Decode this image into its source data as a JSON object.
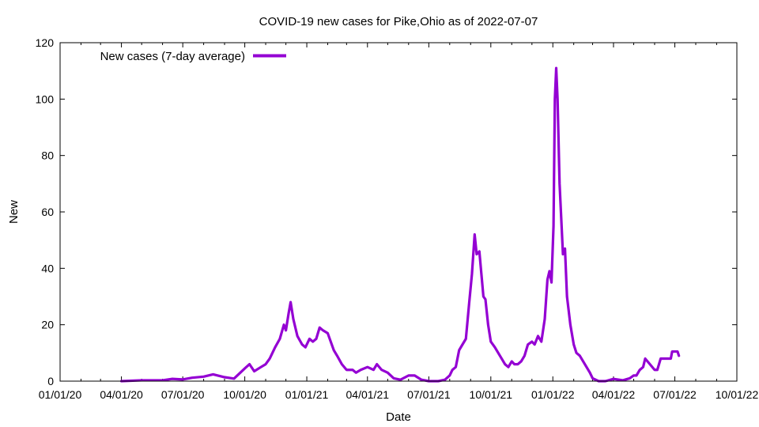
{
  "chart_data": {
    "type": "line",
    "title": "COVID-19 new cases for Pike,Ohio as of 2022-07-07",
    "xlabel": "Date",
    "ylabel": "New",
    "xlim": [
      "2020-01-01",
      "2022-10-01"
    ],
    "ylim": [
      0,
      120
    ],
    "x_ticks": [
      "01/01/20",
      "04/01/20",
      "07/01/20",
      "10/01/20",
      "01/01/21",
      "04/01/21",
      "07/01/21",
      "10/01/21",
      "01/01/22",
      "04/01/22",
      "07/01/22",
      "10/01/22"
    ],
    "y_ticks": [
      0,
      20,
      40,
      60,
      80,
      100,
      120
    ],
    "grid": false,
    "legend_position": "top-left",
    "series": [
      {
        "name": "New cases (7-day average)",
        "color": "#9400d3",
        "points": [
          [
            "2020-04-01",
            0
          ],
          [
            "2020-05-01",
            0.3
          ],
          [
            "2020-06-01",
            0.3
          ],
          [
            "2020-06-15",
            0.8
          ],
          [
            "2020-07-01",
            0.6
          ],
          [
            "2020-07-15",
            1.2
          ],
          [
            "2020-08-01",
            1.6
          ],
          [
            "2020-08-15",
            2.4
          ],
          [
            "2020-09-01",
            1.4
          ],
          [
            "2020-09-15",
            0.9
          ],
          [
            "2020-10-01",
            4.5
          ],
          [
            "2020-10-08",
            6
          ],
          [
            "2020-10-15",
            3.5
          ],
          [
            "2020-10-25",
            5
          ],
          [
            "2020-11-01",
            6
          ],
          [
            "2020-11-07",
            8
          ],
          [
            "2020-11-15",
            12
          ],
          [
            "2020-11-22",
            15
          ],
          [
            "2020-11-28",
            20
          ],
          [
            "2020-12-01",
            18
          ],
          [
            "2020-12-05",
            24
          ],
          [
            "2020-12-08",
            28
          ],
          [
            "2020-12-12",
            22
          ],
          [
            "2020-12-18",
            16
          ],
          [
            "2020-12-25",
            13
          ],
          [
            "2020-12-30",
            12
          ],
          [
            "2021-01-05",
            15
          ],
          [
            "2021-01-10",
            14
          ],
          [
            "2021-01-15",
            15
          ],
          [
            "2021-01-20",
            19
          ],
          [
            "2021-01-25",
            18
          ],
          [
            "2021-02-01",
            17
          ],
          [
            "2021-02-10",
            11
          ],
          [
            "2021-02-15",
            9
          ],
          [
            "2021-02-22",
            6
          ],
          [
            "2021-03-01",
            4
          ],
          [
            "2021-03-10",
            4
          ],
          [
            "2021-03-15",
            3
          ],
          [
            "2021-03-22",
            4
          ],
          [
            "2021-04-01",
            5
          ],
          [
            "2021-04-10",
            4
          ],
          [
            "2021-04-15",
            6
          ],
          [
            "2021-04-22",
            4
          ],
          [
            "2021-05-01",
            3
          ],
          [
            "2021-05-10",
            1
          ],
          [
            "2021-05-20",
            0.5
          ],
          [
            "2021-06-01",
            2
          ],
          [
            "2021-06-10",
            2
          ],
          [
            "2021-06-20",
            0.5
          ],
          [
            "2021-07-01",
            0
          ],
          [
            "2021-07-15",
            0
          ],
          [
            "2021-07-25",
            0.5
          ],
          [
            "2021-08-01",
            2
          ],
          [
            "2021-08-05",
            4
          ],
          [
            "2021-08-10",
            5
          ],
          [
            "2021-08-15",
            11
          ],
          [
            "2021-08-20",
            13
          ],
          [
            "2021-08-25",
            15
          ],
          [
            "2021-08-30",
            28
          ],
          [
            "2021-09-03",
            38
          ],
          [
            "2021-09-07",
            52
          ],
          [
            "2021-09-10",
            45
          ],
          [
            "2021-09-14",
            46
          ],
          [
            "2021-09-17",
            38
          ],
          [
            "2021-09-20",
            30
          ],
          [
            "2021-09-23",
            29
          ],
          [
            "2021-09-27",
            20
          ],
          [
            "2021-10-01",
            14
          ],
          [
            "2021-10-07",
            12
          ],
          [
            "2021-10-12",
            10
          ],
          [
            "2021-10-17",
            8
          ],
          [
            "2021-10-22",
            6
          ],
          [
            "2021-10-27",
            5
          ],
          [
            "2021-11-01",
            7
          ],
          [
            "2021-11-05",
            6
          ],
          [
            "2021-11-10",
            6
          ],
          [
            "2021-11-15",
            7
          ],
          [
            "2021-11-20",
            9
          ],
          [
            "2021-11-25",
            13
          ],
          [
            "2021-12-01",
            14
          ],
          [
            "2021-12-05",
            13
          ],
          [
            "2021-12-10",
            16
          ],
          [
            "2021-12-15",
            14
          ],
          [
            "2021-12-20",
            22
          ],
          [
            "2021-12-24",
            36
          ],
          [
            "2021-12-27",
            39
          ],
          [
            "2021-12-30",
            35
          ],
          [
            "2022-01-02",
            55
          ],
          [
            "2022-01-04",
            100
          ],
          [
            "2022-01-06",
            111
          ],
          [
            "2022-01-08",
            100
          ],
          [
            "2022-01-11",
            70
          ],
          [
            "2022-01-13",
            60
          ],
          [
            "2022-01-16",
            45
          ],
          [
            "2022-01-19",
            47
          ],
          [
            "2022-01-22",
            30
          ],
          [
            "2022-01-27",
            20
          ],
          [
            "2022-02-01",
            13
          ],
          [
            "2022-02-05",
            10
          ],
          [
            "2022-02-10",
            9
          ],
          [
            "2022-02-15",
            7
          ],
          [
            "2022-02-20",
            5
          ],
          [
            "2022-02-25",
            3
          ],
          [
            "2022-03-01",
            1
          ],
          [
            "2022-03-10",
            0
          ],
          [
            "2022-03-20",
            0
          ],
          [
            "2022-04-01",
            0.8
          ],
          [
            "2022-04-15",
            0.3
          ],
          [
            "2022-04-25",
            1
          ],
          [
            "2022-05-01",
            2
          ],
          [
            "2022-05-05",
            2
          ],
          [
            "2022-05-10",
            4
          ],
          [
            "2022-05-15",
            5
          ],
          [
            "2022-05-18",
            8
          ],
          [
            "2022-05-25",
            6
          ],
          [
            "2022-06-01",
            4
          ],
          [
            "2022-06-05",
            4
          ],
          [
            "2022-06-10",
            8
          ],
          [
            "2022-06-25",
            8
          ],
          [
            "2022-06-27",
            10.5
          ],
          [
            "2022-07-05",
            10.5
          ],
          [
            "2022-07-07",
            9
          ]
        ]
      }
    ]
  }
}
